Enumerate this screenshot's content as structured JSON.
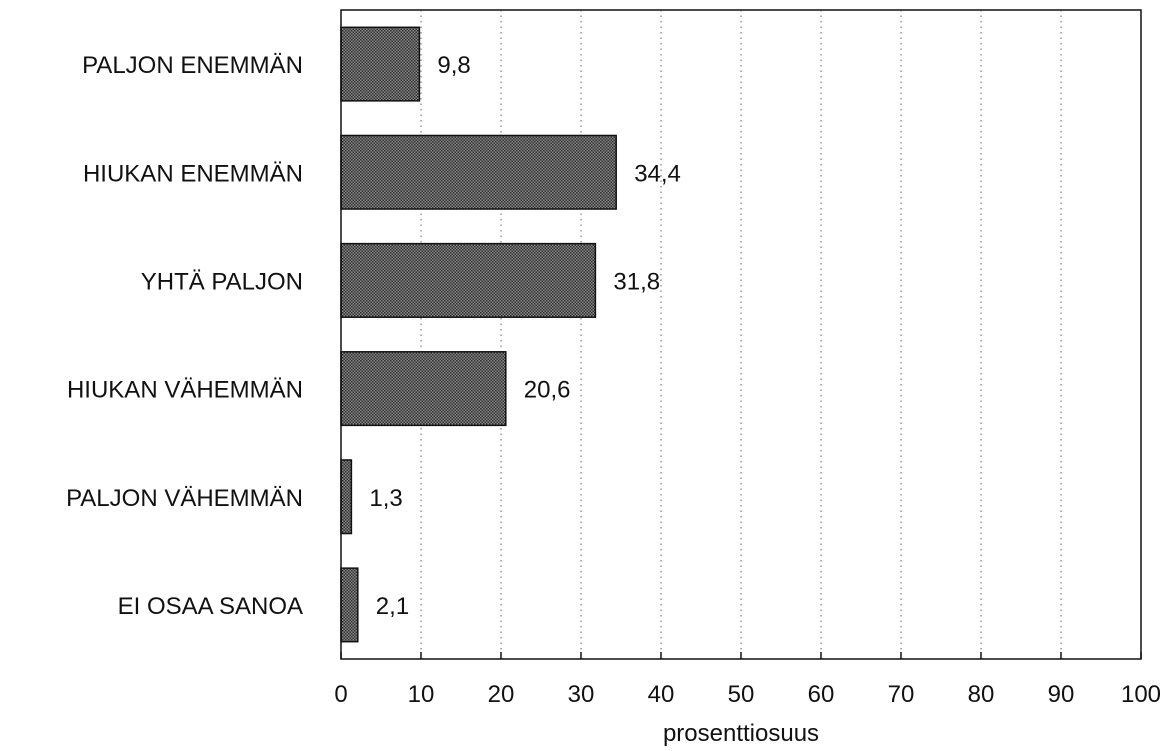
{
  "chart_data": {
    "type": "bar",
    "orientation": "horizontal",
    "categories": [
      "PALJON ENEMMÄN",
      "HIUKAN ENEMMÄN",
      "YHTÄ PALJON",
      "HIUKAN VÄHEMMÄN",
      "PALJON VÄHEMMÄN",
      "EI OSAA SANOA"
    ],
    "values": [
      9.8,
      34.4,
      31.8,
      20.6,
      1.3,
      2.1
    ],
    "value_labels": [
      "9,8",
      "34,4",
      "31,8",
      "20,6",
      "1,3",
      "2,1"
    ],
    "xlabel": "prosenttiosuus",
    "ylabel": "",
    "title": "",
    "xlim": [
      0,
      100
    ],
    "xticks": [
      0,
      10,
      20,
      30,
      40,
      50,
      60,
      70,
      80,
      90,
      100
    ],
    "xtick_labels": [
      "0",
      "10",
      "20",
      "30",
      "40",
      "50",
      "60",
      "70",
      "80",
      "90",
      "100"
    ],
    "grid": "vertical dotted",
    "legend": "none",
    "colors": {
      "bar_fill": "#6e6e6e",
      "bar_stroke": "#111111",
      "axis": "#111111",
      "grid": "#666666"
    }
  }
}
